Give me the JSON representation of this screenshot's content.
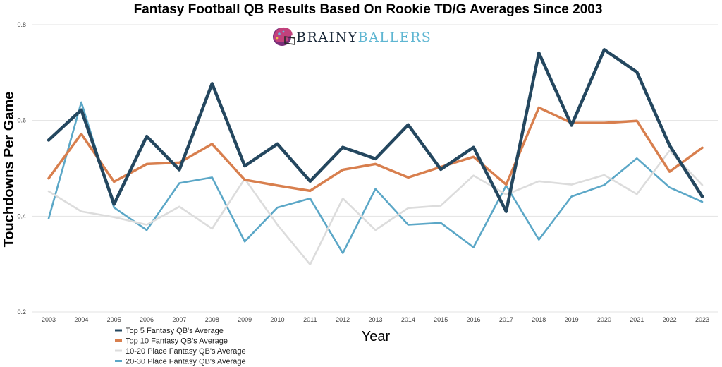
{
  "chart_data": {
    "type": "line",
    "title": "Fantasy Football QB Results Based On Rookie TD/G Averages Since 2003",
    "xlabel": "Year",
    "ylabel": "Touchdowns Per Game",
    "ylim": [
      0.2,
      0.8
    ],
    "yticks": [
      "0.2",
      "0.4",
      "0.6",
      "0.8"
    ],
    "grid": true,
    "legend_position": "bottom-left",
    "x": [
      "2003",
      "2004",
      "2005",
      "2006",
      "2007",
      "2008",
      "2009",
      "2010",
      "2011",
      "2012",
      "2013",
      "2014",
      "2015",
      "2016",
      "2017",
      "2018",
      "2019",
      "2020",
      "2021",
      "2022",
      "2023"
    ],
    "series": [
      {
        "name": "20-30 Place Fantasy QB's  Average",
        "color": "#5ba7c7",
        "values": [
          0.395,
          0.638,
          0.418,
          0.371,
          0.469,
          0.481,
          0.347,
          0.418,
          0.437,
          0.323,
          0.457,
          0.382,
          0.386,
          0.335,
          0.464,
          0.351,
          0.441,
          0.465,
          0.521,
          0.46,
          0.43
        ]
      },
      {
        "name": "10-20 Place Fantasy QB's  Average",
        "color": "#dcdcdc",
        "values": [
          0.452,
          0.41,
          0.398,
          0.382,
          0.42,
          0.374,
          0.478,
          0.382,
          0.299,
          0.437,
          0.371,
          0.417,
          0.422,
          0.485,
          0.445,
          0.473,
          0.466,
          0.486,
          0.446,
          0.537,
          0.465
        ]
      },
      {
        "name": "Top 10 Fantasy QB's Average",
        "color": "#d87f4e",
        "values": [
          0.479,
          0.572,
          0.472,
          0.509,
          0.512,
          0.551,
          0.476,
          0.464,
          0.453,
          0.497,
          0.509,
          0.481,
          0.503,
          0.524,
          0.466,
          0.627,
          0.595,
          0.595,
          0.599,
          0.493,
          0.543
        ]
      },
      {
        "name": "Top 5 Fantasy QB's Average",
        "color": "#24475f",
        "values": [
          0.559,
          0.622,
          0.425,
          0.567,
          0.497,
          0.677,
          0.505,
          0.551,
          0.473,
          0.544,
          0.52,
          0.591,
          0.498,
          0.544,
          0.41,
          0.741,
          0.59,
          0.748,
          0.701,
          0.548,
          0.441
        ]
      }
    ],
    "legend_order": [
      3,
      2,
      1,
      0
    ]
  },
  "logo": {
    "text_dark": "BRAINY",
    "text_light": "BALLERS",
    "icon": "helmet-icon"
  }
}
